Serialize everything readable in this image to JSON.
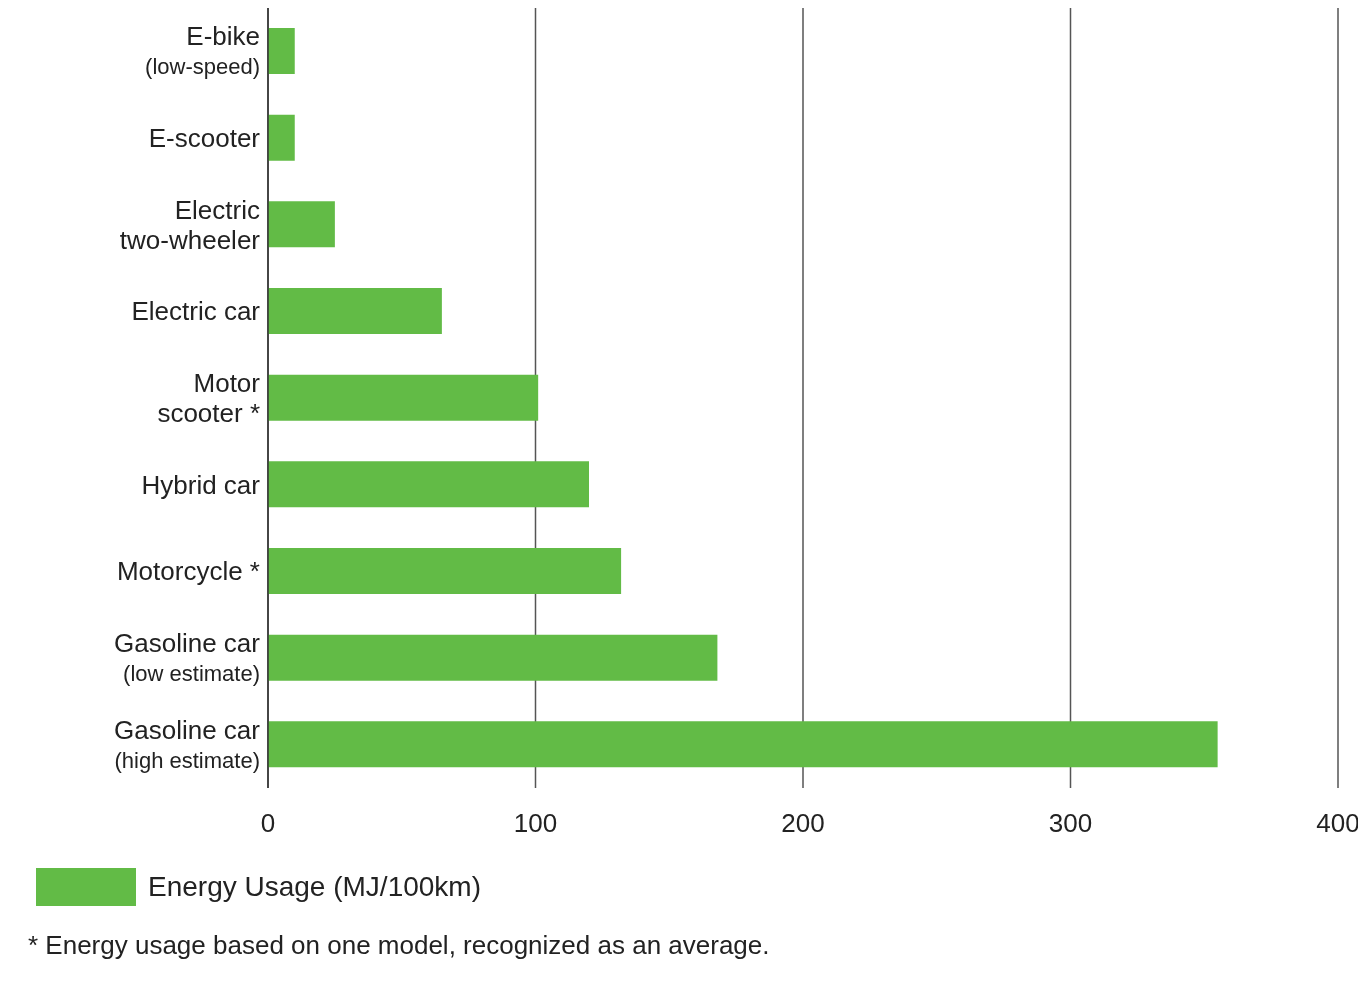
{
  "chart_data": {
    "type": "bar",
    "orientation": "horizontal",
    "categories": [
      "E-bike\n(low-speed)",
      "E-scooter",
      "Electric\ntwo-wheeler",
      "Electric car",
      "Motor\nscooter *",
      "Hybrid car",
      "Motorcycle *",
      "Gasoline car\n(low estimate)",
      "Gasoline car\n(high estimate)"
    ],
    "series": [
      {
        "name": "Energy Usage (MJ/100km)",
        "color": "#62bb46",
        "values": [
          10,
          10,
          25,
          65,
          101,
          120,
          132,
          168,
          355
        ]
      }
    ],
    "xlim": [
      0,
      400
    ],
    "xticks": [
      0,
      100,
      200,
      300,
      400
    ],
    "grid": "x",
    "legend": "bottom",
    "annotations": [
      "* Energy usage based on one model, recognized as an average."
    ]
  }
}
